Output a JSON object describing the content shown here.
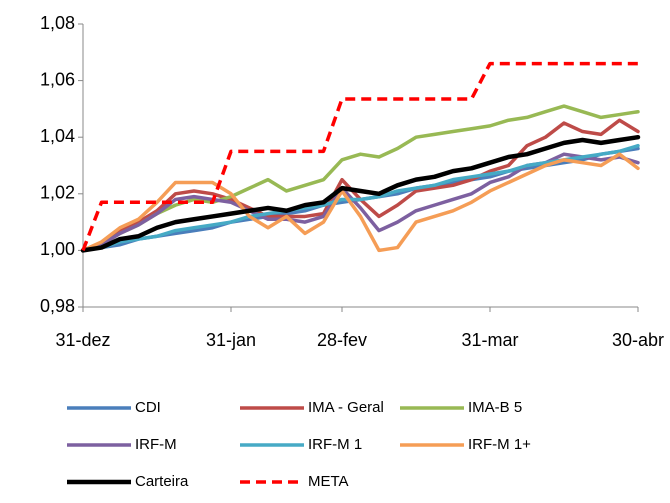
{
  "chart_data": {
    "type": "line",
    "categories": [
      "31-dez",
      null,
      null,
      null,
      null,
      null,
      null,
      null,
      "31-jan",
      null,
      null,
      null,
      null,
      null,
      "28-fev",
      null,
      null,
      null,
      null,
      null,
      null,
      null,
      "31-mar",
      null,
      null,
      null,
      null,
      null,
      null,
      null,
      "30-abr"
    ],
    "ylim": [
      0.98,
      1.08
    ],
    "yticks": [
      {
        "value": 0.98,
        "label": "0,98"
      },
      {
        "value": 1.0,
        "label": "1,00"
      },
      {
        "value": 1.02,
        "label": "1,02"
      },
      {
        "value": 1.04,
        "label": "1,04"
      },
      {
        "value": 1.06,
        "label": "1,06"
      },
      {
        "value": 1.08,
        "label": "1,08"
      }
    ],
    "grid": false,
    "legend": "bottom",
    "series": [
      {
        "name": "CDI",
        "color": "#4a7ebb",
        "width": 3.5,
        "values": [
          1.0,
          1.001,
          1.002,
          1.004,
          1.005,
          1.006,
          1.007,
          1.008,
          1.01,
          1.011,
          1.012,
          1.013,
          1.014,
          1.016,
          1.017,
          1.018,
          1.019,
          1.02,
          1.022,
          1.023,
          1.024,
          1.025,
          1.026,
          1.028,
          1.029,
          1.03,
          1.031,
          1.032,
          1.034,
          1.035,
          1.036
        ]
      },
      {
        "name": "IMA - Geral",
        "color": "#be4b48",
        "width": 3.5,
        "values": [
          1.0,
          1.002,
          1.007,
          1.01,
          1.014,
          1.02,
          1.021,
          1.02,
          1.018,
          1.015,
          1.012,
          1.012,
          1.012,
          1.013,
          1.025,
          1.018,
          1.012,
          1.016,
          1.021,
          1.022,
          1.023,
          1.025,
          1.028,
          1.03,
          1.037,
          1.04,
          1.045,
          1.042,
          1.041,
          1.046,
          1.042
        ]
      },
      {
        "name": "IMA-B 5",
        "color": "#98b954",
        "width": 3.5,
        "values": [
          1.0,
          1.002,
          1.006,
          1.009,
          1.013,
          1.016,
          1.018,
          1.017,
          1.019,
          1.022,
          1.025,
          1.021,
          1.023,
          1.025,
          1.032,
          1.034,
          1.033,
          1.036,
          1.04,
          1.041,
          1.042,
          1.043,
          1.044,
          1.046,
          1.047,
          1.049,
          1.051,
          1.049,
          1.047,
          1.048,
          1.049
        ]
      },
      {
        "name": "IRF-M",
        "color": "#7d60a0",
        "width": 3.5,
        "values": [
          1.0,
          1.002,
          1.006,
          1.009,
          1.013,
          1.018,
          1.019,
          1.018,
          1.017,
          1.014,
          1.011,
          1.011,
          1.01,
          1.012,
          1.022,
          1.015,
          1.007,
          1.01,
          1.014,
          1.016,
          1.018,
          1.02,
          1.024,
          1.026,
          1.03,
          1.031,
          1.034,
          1.033,
          1.032,
          1.033,
          1.031
        ]
      },
      {
        "name": "IRF-M 1",
        "color": "#46aac5",
        "width": 3.5,
        "values": [
          1.0,
          1.001,
          1.003,
          1.004,
          1.005,
          1.007,
          1.008,
          1.009,
          1.01,
          1.012,
          1.013,
          1.014,
          1.015,
          1.016,
          1.018,
          1.018,
          1.019,
          1.021,
          1.022,
          1.023,
          1.025,
          1.026,
          1.027,
          1.028,
          1.03,
          1.031,
          1.032,
          1.033,
          1.034,
          1.035,
          1.037
        ]
      },
      {
        "name": "IRF-M 1+",
        "color": "#f59d56",
        "width": 3.5,
        "values": [
          1.0,
          1.003,
          1.008,
          1.011,
          1.017,
          1.024,
          1.024,
          1.024,
          1.02,
          1.012,
          1.008,
          1.012,
          1.006,
          1.01,
          1.021,
          1.012,
          1.0,
          1.001,
          1.01,
          1.012,
          1.014,
          1.017,
          1.021,
          1.024,
          1.027,
          1.03,
          1.032,
          1.031,
          1.03,
          1.034,
          1.029
        ]
      },
      {
        "name": "Carteira",
        "color": "#000000",
        "width": 4.5,
        "values": [
          1.0,
          1.001,
          1.004,
          1.005,
          1.008,
          1.01,
          1.011,
          1.012,
          1.013,
          1.014,
          1.015,
          1.014,
          1.016,
          1.017,
          1.022,
          1.021,
          1.02,
          1.023,
          1.025,
          1.026,
          1.028,
          1.029,
          1.031,
          1.033,
          1.034,
          1.036,
          1.038,
          1.039,
          1.038,
          1.039,
          1.04
        ]
      },
      {
        "name": "META",
        "color": "#ff0000",
        "width": 3.5,
        "dashed": true,
        "values": [
          1.0,
          1.017,
          1.017,
          1.017,
          1.017,
          1.017,
          1.017,
          1.017,
          1.035,
          1.035,
          1.035,
          1.035,
          1.035,
          1.035,
          1.0535,
          1.0535,
          1.0535,
          1.0535,
          1.0535,
          1.0535,
          1.0535,
          1.0535,
          1.066,
          1.066,
          1.066,
          1.066,
          1.066,
          1.066,
          1.066,
          1.066,
          1.066
        ]
      }
    ]
  }
}
